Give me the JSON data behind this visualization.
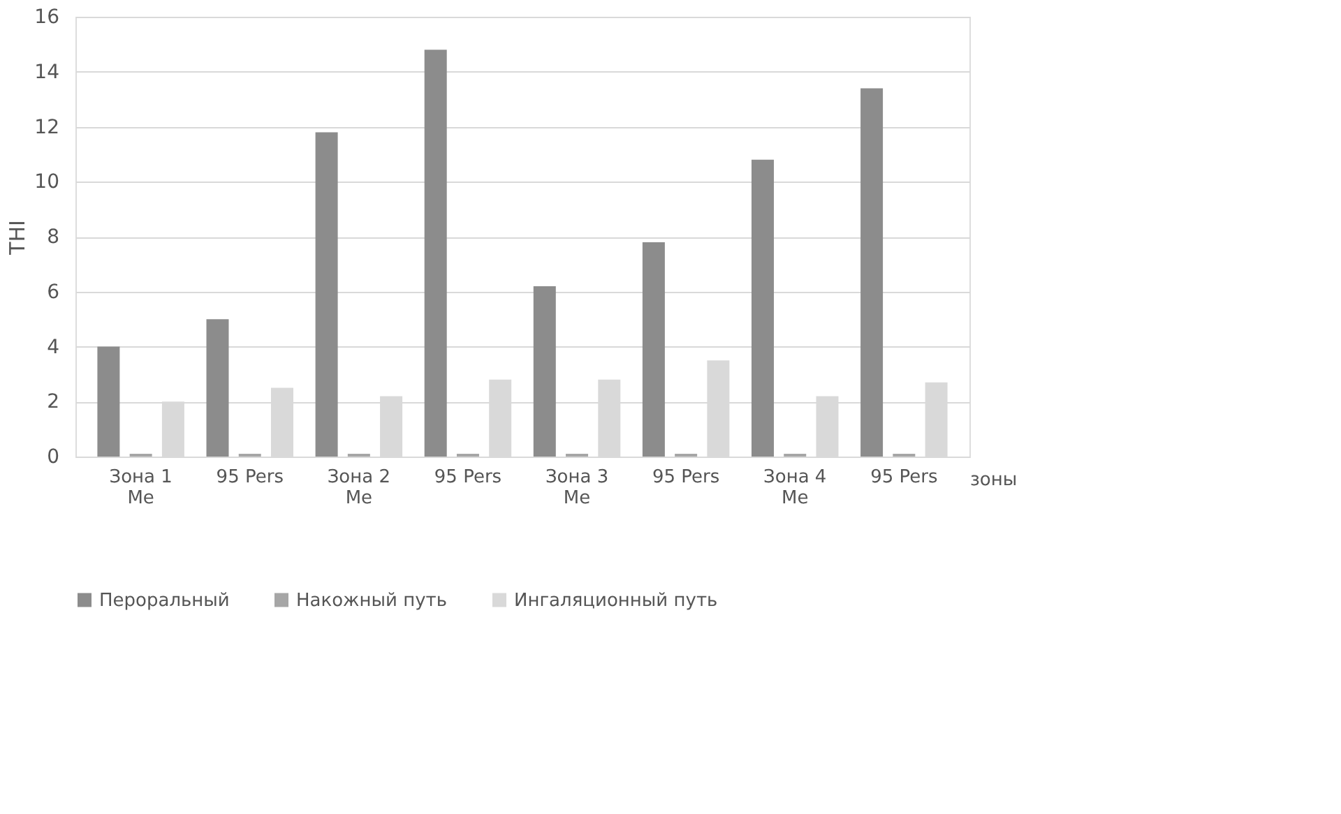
{
  "chart_data": {
    "type": "bar",
    "xlabel": "зоны",
    "ylabel": "THI",
    "categories": [
      "Зона 1 Me",
      "95 Pers",
      "Зона 2 Me",
      "95 Pers",
      "Зона 3 Me",
      "95 Pers",
      "Зона 4 Me",
      "95 Pers"
    ],
    "series": [
      {
        "name": "Пероральный",
        "color": "#8c8c8c",
        "values": [
          4.0,
          5.0,
          11.8,
          14.8,
          6.2,
          7.8,
          10.8,
          13.4
        ]
      },
      {
        "name": "Накожный путь",
        "color": "#a6a6a6",
        "values": [
          0.1,
          0.1,
          0.1,
          0.1,
          0.1,
          0.1,
          0.1,
          0.1
        ]
      },
      {
        "name": "Ингаляционный путь",
        "color": "#d9d9d9",
        "values": [
          2.0,
          2.5,
          2.2,
          2.8,
          2.8,
          3.5,
          2.2,
          2.7
        ]
      }
    ],
    "ylim": [
      0,
      16
    ],
    "yticks": [
      0,
      2,
      4,
      6,
      8,
      10,
      12,
      14,
      16
    ],
    "grid": "y",
    "legend": "bottom"
  }
}
